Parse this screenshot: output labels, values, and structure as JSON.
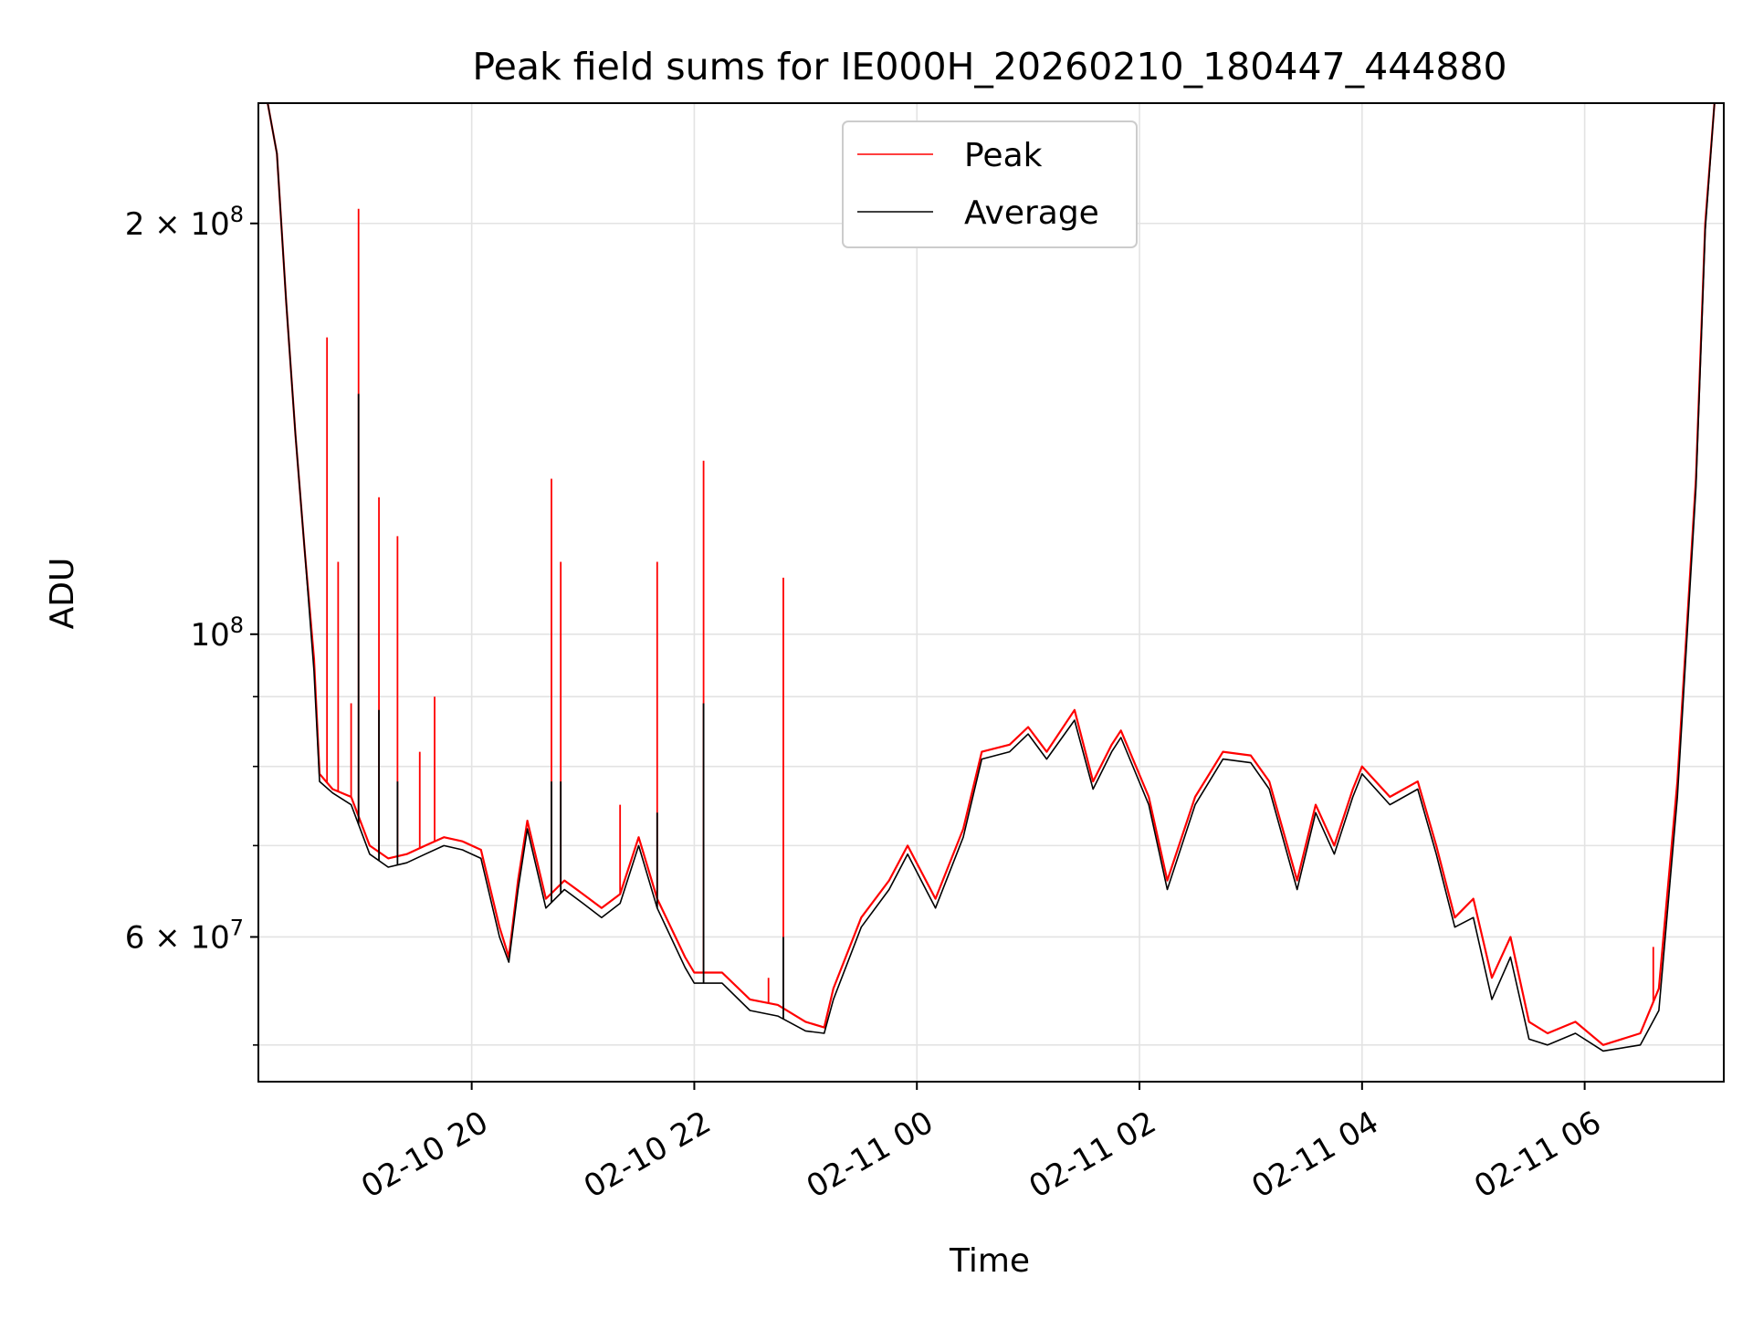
{
  "chart_data": {
    "type": "line",
    "title": "Peak field sums for IE000H_20260210_180447_444880",
    "xlabel": "Time",
    "ylabel": "ADU",
    "y_scale": "log",
    "ylim": [
      47000000,
      245000000
    ],
    "xlim": [
      "2026-02-10 18:05",
      "2026-02-11 07:15"
    ],
    "grid": true,
    "legend_position": "top-center",
    "x_ticks": [
      {
        "value": "2026-02-10 20:00",
        "label": "02-10 20"
      },
      {
        "value": "2026-02-10 22:00",
        "label": "02-10 22"
      },
      {
        "value": "2026-02-11 00:00",
        "label": "02-11 00"
      },
      {
        "value": "2026-02-11 02:00",
        "label": "02-11 02"
      },
      {
        "value": "2026-02-11 04:00",
        "label": "02-11 04"
      },
      {
        "value": "2026-02-11 06:00",
        "label": "02-11 06"
      }
    ],
    "y_major_ticks": [
      {
        "value": 200000000,
        "label_base": "2 × 10",
        "label_exp": "8"
      },
      {
        "value": 100000000,
        "label_base": "10",
        "label_exp": "8"
      },
      {
        "value": 60000000,
        "label_base": "6 × 10",
        "label_exp": "7"
      }
    ],
    "y_minor_ticks": [
      50000000,
      70000000,
      80000000,
      90000000
    ],
    "series": [
      {
        "name": "Peak",
        "color": "#ff0000",
        "points": [
          [
            "2026-02-10 18:10",
            245000000
          ],
          [
            "2026-02-10 18:15",
            225000000
          ],
          [
            "2026-02-10 18:20",
            175000000
          ],
          [
            "2026-02-10 18:25",
            140000000
          ],
          [
            "2026-02-10 18:30",
            115000000
          ],
          [
            "2026-02-10 18:35",
            96000000
          ],
          [
            "2026-02-10 18:38",
            79000000
          ],
          [
            "2026-02-10 18:45",
            77000000
          ],
          [
            "2026-02-10 18:55",
            76000000
          ],
          [
            "2026-02-10 19:05",
            70000000
          ],
          [
            "2026-02-10 19:15",
            68500000
          ],
          [
            "2026-02-10 19:25",
            69000000
          ],
          [
            "2026-02-10 19:35",
            70000000
          ],
          [
            "2026-02-10 19:45",
            71000000
          ],
          [
            "2026-02-10 19:55",
            70500000
          ],
          [
            "2026-02-10 20:05",
            69500000
          ],
          [
            "2026-02-10 20:15",
            61000000
          ],
          [
            "2026-02-10 20:20",
            58000000
          ],
          [
            "2026-02-10 20:25",
            66000000
          ],
          [
            "2026-02-10 20:30",
            73000000
          ],
          [
            "2026-02-10 20:40",
            64000000
          ],
          [
            "2026-02-10 20:50",
            66000000
          ],
          [
            "2026-02-10 21:00",
            64500000
          ],
          [
            "2026-02-10 21:10",
            63000000
          ],
          [
            "2026-02-10 21:20",
            64500000
          ],
          [
            "2026-02-10 21:30",
            71000000
          ],
          [
            "2026-02-10 21:40",
            64000000
          ],
          [
            "2026-02-10 21:55",
            58000000
          ],
          [
            "2026-02-10 22:00",
            56500000
          ],
          [
            "2026-02-10 22:15",
            56500000
          ],
          [
            "2026-02-10 22:30",
            54000000
          ],
          [
            "2026-02-10 22:45",
            53500000
          ],
          [
            "2026-02-10 23:00",
            52000000
          ],
          [
            "2026-02-10 23:10",
            51500000
          ],
          [
            "2026-02-10 23:15",
            55000000
          ],
          [
            "2026-02-10 23:30",
            62000000
          ],
          [
            "2026-02-10 23:45",
            66000000
          ],
          [
            "2026-02-10 23:55",
            70000000
          ],
          [
            "2026-02-11 00:10",
            64000000
          ],
          [
            "2026-02-11 00:25",
            72000000
          ],
          [
            "2026-02-11 00:35",
            82000000
          ],
          [
            "2026-02-11 00:50",
            83000000
          ],
          [
            "2026-02-11 01:00",
            85500000
          ],
          [
            "2026-02-11 01:10",
            82000000
          ],
          [
            "2026-02-11 01:25",
            88000000
          ],
          [
            "2026-02-11 01:35",
            78000000
          ],
          [
            "2026-02-11 01:45",
            83000000
          ],
          [
            "2026-02-11 01:50",
            85000000
          ],
          [
            "2026-02-11 02:05",
            76000000
          ],
          [
            "2026-02-11 02:15",
            66000000
          ],
          [
            "2026-02-11 02:30",
            76000000
          ],
          [
            "2026-02-11 02:45",
            82000000
          ],
          [
            "2026-02-11 03:00",
            81500000
          ],
          [
            "2026-02-11 03:10",
            78000000
          ],
          [
            "2026-02-11 03:25",
            66000000
          ],
          [
            "2026-02-11 03:35",
            75000000
          ],
          [
            "2026-02-11 03:45",
            70000000
          ],
          [
            "2026-02-11 03:55",
            77000000
          ],
          [
            "2026-02-11 04:00",
            80000000
          ],
          [
            "2026-02-11 04:15",
            76000000
          ],
          [
            "2026-02-11 04:30",
            78000000
          ],
          [
            "2026-02-11 04:40",
            70000000
          ],
          [
            "2026-02-11 04:50",
            62000000
          ],
          [
            "2026-02-11 05:00",
            64000000
          ],
          [
            "2026-02-11 05:10",
            56000000
          ],
          [
            "2026-02-11 05:20",
            60000000
          ],
          [
            "2026-02-11 05:30",
            52000000
          ],
          [
            "2026-02-11 05:40",
            51000000
          ],
          [
            "2026-02-11 05:55",
            52000000
          ],
          [
            "2026-02-11 06:10",
            50000000
          ],
          [
            "2026-02-11 06:30",
            51000000
          ],
          [
            "2026-02-11 06:40",
            55000000
          ],
          [
            "2026-02-11 06:50",
            78000000
          ],
          [
            "2026-02-11 07:00",
            130000000
          ],
          [
            "2026-02-11 07:05",
            200000000
          ],
          [
            "2026-02-11 07:10",
            245000000
          ]
        ],
        "spikes": [
          [
            "2026-02-10 18:42",
            165000000
          ],
          [
            "2026-02-10 18:48",
            113000000
          ],
          [
            "2026-02-10 18:55",
            89000000
          ],
          [
            "2026-02-10 18:59",
            205000000
          ],
          [
            "2026-02-10 19:10",
            126000000
          ],
          [
            "2026-02-10 19:20",
            118000000
          ],
          [
            "2026-02-10 19:32",
            82000000
          ],
          [
            "2026-02-10 19:40",
            90000000
          ],
          [
            "2026-02-10 20:43",
            130000000
          ],
          [
            "2026-02-10 20:48",
            113000000
          ],
          [
            "2026-02-10 21:20",
            75000000
          ],
          [
            "2026-02-10 21:40",
            113000000
          ],
          [
            "2026-02-10 22:05",
            134000000
          ],
          [
            "2026-02-10 22:40",
            56000000
          ],
          [
            "2026-02-10 22:48",
            110000000
          ],
          [
            "2026-02-11 06:37",
            59000000
          ]
        ]
      },
      {
        "name": "Average",
        "color": "#000000",
        "points": [
          [
            "2026-02-10 18:10",
            245000000
          ],
          [
            "2026-02-10 18:15",
            225000000
          ],
          [
            "2026-02-10 18:20",
            175000000
          ],
          [
            "2026-02-10 18:25",
            140000000
          ],
          [
            "2026-02-10 18:30",
            115000000
          ],
          [
            "2026-02-10 18:35",
            94000000
          ],
          [
            "2026-02-10 18:38",
            78000000
          ],
          [
            "2026-02-10 18:45",
            76500000
          ],
          [
            "2026-02-10 18:55",
            75000000
          ],
          [
            "2026-02-10 19:05",
            69000000
          ],
          [
            "2026-02-10 19:15",
            67500000
          ],
          [
            "2026-02-10 19:25",
            68000000
          ],
          [
            "2026-02-10 19:35",
            69000000
          ],
          [
            "2026-02-10 19:45",
            70000000
          ],
          [
            "2026-02-10 19:55",
            69500000
          ],
          [
            "2026-02-10 20:05",
            68500000
          ],
          [
            "2026-02-10 20:15",
            60000000
          ],
          [
            "2026-02-10 20:20",
            57500000
          ],
          [
            "2026-02-10 20:25",
            65000000
          ],
          [
            "2026-02-10 20:30",
            72000000
          ],
          [
            "2026-02-10 20:40",
            63000000
          ],
          [
            "2026-02-10 20:50",
            65000000
          ],
          [
            "2026-02-10 21:00",
            63500000
          ],
          [
            "2026-02-10 21:10",
            62000000
          ],
          [
            "2026-02-10 21:20",
            63500000
          ],
          [
            "2026-02-10 21:30",
            70000000
          ],
          [
            "2026-02-10 21:40",
            63000000
          ],
          [
            "2026-02-10 21:55",
            57000000
          ],
          [
            "2026-02-10 22:00",
            55500000
          ],
          [
            "2026-02-10 22:15",
            55500000
          ],
          [
            "2026-02-10 22:30",
            53000000
          ],
          [
            "2026-02-10 22:45",
            52500000
          ],
          [
            "2026-02-10 23:00",
            51200000
          ],
          [
            "2026-02-10 23:10",
            51000000
          ],
          [
            "2026-02-10 23:15",
            54000000
          ],
          [
            "2026-02-10 23:30",
            61000000
          ],
          [
            "2026-02-10 23:45",
            65000000
          ],
          [
            "2026-02-10 23:55",
            69000000
          ],
          [
            "2026-02-11 00:10",
            63000000
          ],
          [
            "2026-02-11 00:25",
            71000000
          ],
          [
            "2026-02-11 00:35",
            81000000
          ],
          [
            "2026-02-11 00:50",
            82000000
          ],
          [
            "2026-02-11 01:00",
            84500000
          ],
          [
            "2026-02-11 01:10",
            81000000
          ],
          [
            "2026-02-11 01:25",
            86500000
          ],
          [
            "2026-02-11 01:35",
            77000000
          ],
          [
            "2026-02-11 01:45",
            82000000
          ],
          [
            "2026-02-11 01:50",
            84000000
          ],
          [
            "2026-02-11 02:05",
            75000000
          ],
          [
            "2026-02-11 02:15",
            65000000
          ],
          [
            "2026-02-11 02:30",
            75000000
          ],
          [
            "2026-02-11 02:45",
            81000000
          ],
          [
            "2026-02-11 03:00",
            80500000
          ],
          [
            "2026-02-11 03:10",
            77000000
          ],
          [
            "2026-02-11 03:25",
            65000000
          ],
          [
            "2026-02-11 03:35",
            74000000
          ],
          [
            "2026-02-11 03:45",
            69000000
          ],
          [
            "2026-02-11 03:55",
            76000000
          ],
          [
            "2026-02-11 04:00",
            79000000
          ],
          [
            "2026-02-11 04:15",
            75000000
          ],
          [
            "2026-02-11 04:30",
            77000000
          ],
          [
            "2026-02-11 04:40",
            69000000
          ],
          [
            "2026-02-11 04:50",
            61000000
          ],
          [
            "2026-02-11 05:00",
            62000000
          ],
          [
            "2026-02-11 05:10",
            54000000
          ],
          [
            "2026-02-11 05:20",
            58000000
          ],
          [
            "2026-02-11 05:30",
            50500000
          ],
          [
            "2026-02-11 05:40",
            50000000
          ],
          [
            "2026-02-11 05:55",
            51000000
          ],
          [
            "2026-02-11 06:10",
            49500000
          ],
          [
            "2026-02-11 06:30",
            50000000
          ],
          [
            "2026-02-11 06:40",
            53000000
          ],
          [
            "2026-02-11 06:50",
            76000000
          ],
          [
            "2026-02-11 07:00",
            128000000
          ],
          [
            "2026-02-11 07:05",
            198000000
          ],
          [
            "2026-02-11 07:10",
            245000000
          ]
        ],
        "spikes": [
          [
            "2026-02-10 18:59",
            150000000
          ],
          [
            "2026-02-10 19:10",
            88000000
          ],
          [
            "2026-02-10 19:20",
            78000000
          ],
          [
            "2026-02-10 20:43",
            78000000
          ],
          [
            "2026-02-10 20:48",
            78000000
          ],
          [
            "2026-02-10 21:40",
            74000000
          ],
          [
            "2026-02-10 22:05",
            89000000
          ],
          [
            "2026-02-10 22:48",
            60000000
          ]
        ]
      }
    ]
  }
}
